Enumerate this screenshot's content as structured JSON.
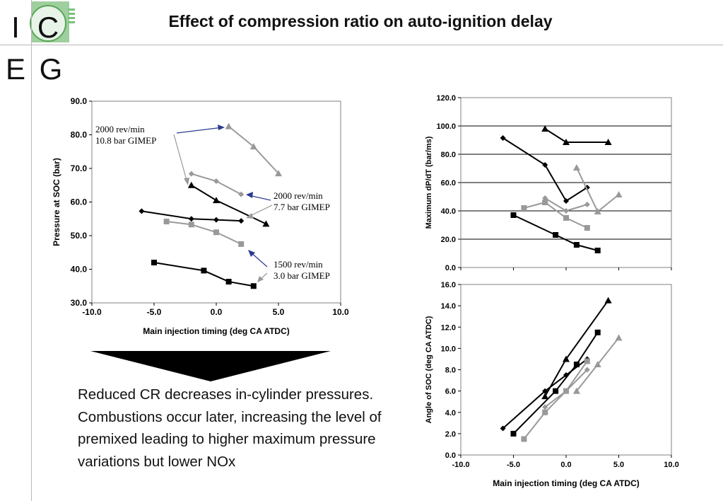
{
  "logo": {
    "letters": [
      "I",
      "C",
      "E",
      "G"
    ]
  },
  "title": "Effect of compression ratio on auto-ignition delay",
  "summary": "Reduced CR decreases in-cylinder pressures. Combustions occur later, increasing the level of premixed leading to higher maximum pressure variations but lower NOx",
  "colors": {
    "black": "#000000",
    "gray": "#999999",
    "annotation_arrow": "#2b3a8f"
  },
  "chart_data": [
    {
      "id": "pressure",
      "type": "line",
      "title": "",
      "xlabel": "Main injection timing (deg CA ATDC)",
      "ylabel": "Pressure at SOC (bar)",
      "xlim": [
        -10,
        10
      ],
      "ylim": [
        30,
        90
      ],
      "xticks": [
        "-10.0",
        "-5.0",
        "0.0",
        "5.0",
        "10.0"
      ],
      "yticks": [
        "30.0",
        "40.0",
        "50.0",
        "60.0",
        "70.0",
        "80.0",
        "90.0"
      ],
      "grid": false,
      "series": [
        {
          "color": "black",
          "marker": "diamond",
          "x": [
            -6,
            -2,
            0,
            2
          ],
          "y": [
            57.3,
            55.0,
            54.7,
            54.4
          ]
        },
        {
          "color": "black",
          "marker": "triangle",
          "x": [
            -2,
            0,
            4
          ],
          "y": [
            65.0,
            60.5,
            53.5
          ]
        },
        {
          "color": "black",
          "marker": "square",
          "x": [
            -5,
            -1,
            1,
            3
          ],
          "y": [
            42.0,
            39.6,
            36.3,
            35.0
          ]
        },
        {
          "color": "gray",
          "marker": "triangle",
          "x": [
            1,
            3,
            5
          ],
          "y": [
            82.5,
            76.5,
            68.5
          ]
        },
        {
          "color": "gray",
          "marker": "diamond",
          "x": [
            -2,
            0,
            2
          ],
          "y": [
            68.4,
            66.2,
            62.3
          ]
        },
        {
          "color": "gray",
          "marker": "square",
          "x": [
            -4,
            -2,
            0,
            2
          ],
          "y": [
            54.2,
            53.3,
            51.0,
            47.5
          ]
        }
      ],
      "annotations": [
        {
          "lines": [
            "2000 rev/min",
            "10.8 bar GIMEP"
          ]
        },
        {
          "lines": [
            "2000 rev/min",
            "7.7 bar GIMEP"
          ]
        },
        {
          "lines": [
            "1500 rev/min",
            "3.0 bar GIMEP"
          ]
        }
      ]
    },
    {
      "id": "dpdt",
      "type": "line",
      "title": "",
      "xlabel": "",
      "ylabel": "Maximum dP/dT (bar/ms)",
      "xlim": [
        -10,
        10
      ],
      "ylim": [
        0,
        120
      ],
      "yticks": [
        "0.0",
        "20.0",
        "40.0",
        "60.0",
        "80.0",
        "100.0",
        "120.0"
      ],
      "grid": true,
      "series": [
        {
          "color": "black",
          "marker": "diamond",
          "x": [
            -6,
            -2,
            0,
            2
          ],
          "y": [
            91.5,
            72.5,
            47.0,
            56.5
          ]
        },
        {
          "color": "black",
          "marker": "triangle",
          "x": [
            -2,
            0,
            4
          ],
          "y": [
            98.0,
            88.5,
            88.5
          ]
        },
        {
          "color": "black",
          "marker": "square",
          "x": [
            -5,
            -1,
            1,
            3
          ],
          "y": [
            37.0,
            23.0,
            16.0,
            12.0
          ]
        },
        {
          "color": "gray",
          "marker": "triangle",
          "x": [
            1,
            3,
            5
          ],
          "y": [
            70.5,
            39.5,
            51.5
          ]
        },
        {
          "color": "gray",
          "marker": "diamond",
          "x": [
            -2,
            0,
            2
          ],
          "y": [
            49.0,
            40.0,
            44.5
          ]
        },
        {
          "color": "gray",
          "marker": "square",
          "x": [
            -4,
            -2,
            0,
            2
          ],
          "y": [
            42.0,
            46.0,
            35.0,
            28.0
          ]
        }
      ]
    },
    {
      "id": "angle",
      "type": "line",
      "title": "",
      "xlabel": "Main injection timing (deg CA ATDC)",
      "ylabel": "Angle of SOC (deg CA ATDC)",
      "xlim": [
        -10,
        10
      ],
      "ylim": [
        0,
        16
      ],
      "xticks": [
        "-10.0",
        "-5.0",
        "0.0",
        "5.0",
        "10.0"
      ],
      "yticks": [
        "0.0",
        "2.0",
        "4.0",
        "6.0",
        "8.0",
        "10.0",
        "12.0",
        "14.0",
        "16.0"
      ],
      "grid": false,
      "series": [
        {
          "color": "black",
          "marker": "diamond",
          "x": [
            -6,
            -2,
            0,
            2
          ],
          "y": [
            2.5,
            6.0,
            7.5,
            9.0
          ]
        },
        {
          "color": "black",
          "marker": "triangle",
          "x": [
            -2,
            0,
            4
          ],
          "y": [
            5.5,
            9.0,
            14.5
          ]
        },
        {
          "color": "black",
          "marker": "square",
          "x": [
            -5,
            -1,
            1,
            3
          ],
          "y": [
            2.0,
            6.0,
            8.5,
            11.5
          ]
        },
        {
          "color": "gray",
          "marker": "triangle",
          "x": [
            1,
            3,
            5
          ],
          "y": [
            6.0,
            8.5,
            11.0
          ]
        },
        {
          "color": "gray",
          "marker": "diamond",
          "x": [
            -2,
            0,
            2
          ],
          "y": [
            4.5,
            6.0,
            8.0
          ]
        },
        {
          "color": "gray",
          "marker": "square",
          "x": [
            -4,
            -2,
            0,
            2
          ],
          "y": [
            1.5,
            4.0,
            6.0,
            8.8
          ]
        }
      ]
    }
  ]
}
